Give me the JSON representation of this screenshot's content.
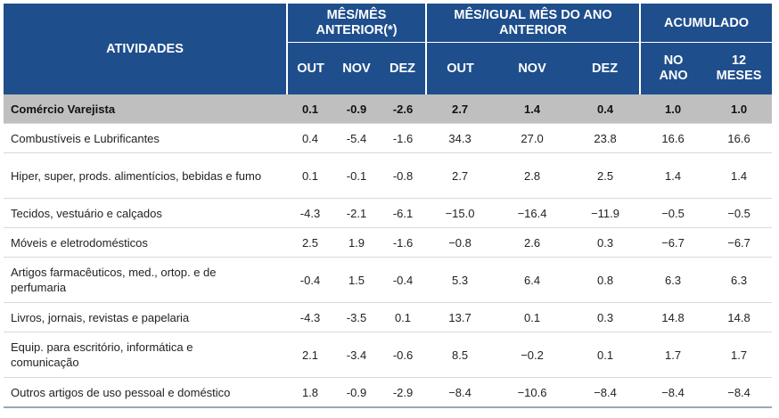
{
  "header": {
    "activities": "ATIVIDADES",
    "group_mm": "MÊS/MÊS ANTERIOR(*)",
    "group_ma": "MÊS/IGUAL MÊS DO ANO ANTERIOR",
    "group_acc": "ACUMULADO",
    "cols": [
      "OUT",
      "NOV",
      "DEZ",
      "OUT",
      "NOV",
      "DEZ",
      "NO ANO",
      "12 MESES"
    ]
  },
  "rows": [
    {
      "name": "Comércio Varejista",
      "values": [
        "0.1",
        "-0.9",
        "-2.6",
        "2.7",
        "1.4",
        "0.4",
        "1.0",
        "1.0"
      ]
    },
    {
      "name": "Combustíveis e Lubrificantes",
      "values": [
        "0.4",
        "-5.4",
        "-1.6",
        "34.3",
        "27.0",
        "23.8",
        "16.6",
        "16.6"
      ]
    },
    {
      "name": "Hiper, super, prods. alimentícios, bebidas e fumo",
      "values": [
        "0.1",
        "-0.1",
        "-0.8",
        "2.7",
        "2.8",
        "2.5",
        "1.4",
        "1.4"
      ]
    },
    {
      "name": "Tecidos, vestuário e calçados",
      "values": [
        "-4.3",
        "-2.1",
        "-6.1",
        "−15.0",
        "−16.4",
        "−11.9",
        "−0.5",
        "−0.5"
      ]
    },
    {
      "name": "Móveis e eletrodomésticos",
      "values": [
        "2.5",
        "1.9",
        "-1.6",
        "−0.8",
        "2.6",
        "0.3",
        "−6.7",
        "−6.7"
      ]
    },
    {
      "name": "Artigos farmacêuticos, med., ortop. e de perfumaria",
      "values": [
        "-0.4",
        "1.5",
        "-0.4",
        "5.3",
        "6.4",
        "0.8",
        "6.3",
        "6.3"
      ]
    },
    {
      "name": "Livros, jornais, revistas e papelaria",
      "values": [
        "-4.3",
        "-3.5",
        "0.1",
        "13.7",
        "0.1",
        "0.3",
        "14.8",
        "14.8"
      ]
    },
    {
      "name": "Equip. para escritório, informática e comunicação",
      "values": [
        "2.1",
        "-3.4",
        "-0.6",
        "8.5",
        "−0.2",
        "0.1",
        "1.7",
        "1.7"
      ]
    },
    {
      "name": "Outros artigos de uso pessoal e doméstico",
      "values": [
        "1.8",
        "-0.9",
        "-2.9",
        "−8.4",
        "−10.6",
        "−8.4",
        "−8.4",
        "−8.4"
      ]
    }
  ]
}
